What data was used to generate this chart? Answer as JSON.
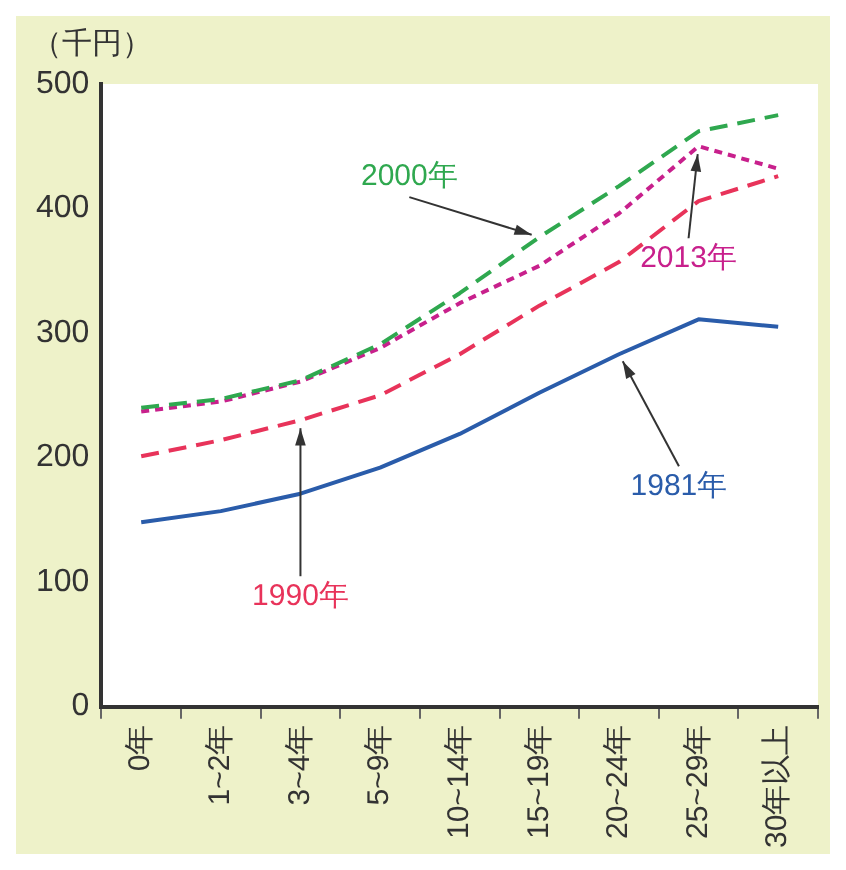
{
  "chart_data": {
    "type": "line",
    "ylabel": "（千円）",
    "categories": [
      "0年",
      "1~2年",
      "3~4年",
      "5~9年",
      "10~14年",
      "15~19年",
      "20~24年",
      "25~29年",
      "30年以上"
    ],
    "series": [
      {
        "name": "1981年",
        "color": "#2a5caa",
        "line_style": "solid",
        "values": [
          148,
          157,
          171,
          192,
          219,
          252,
          283,
          311,
          305
        ]
      },
      {
        "name": "1990年",
        "color": "#e8335a",
        "line_style": "dashed",
        "values": [
          201,
          214,
          230,
          250,
          283,
          322,
          357,
          406,
          426
        ]
      },
      {
        "name": "2000年",
        "color": "#2fa84f",
        "line_style": "dashed",
        "values": [
          240,
          247,
          262,
          291,
          332,
          377,
          418,
          462,
          475
        ]
      },
      {
        "name": "2013年",
        "color": "#c8208c",
        "line_style": "dotted",
        "values": [
          237,
          245,
          261,
          288,
          324,
          354,
          396,
          450,
          432
        ]
      }
    ],
    "ylim": [
      0,
      500
    ],
    "yticks": [
      0,
      100,
      200,
      300,
      400,
      500
    ],
    "grid": false,
    "legend": false,
    "marker": "none"
  }
}
